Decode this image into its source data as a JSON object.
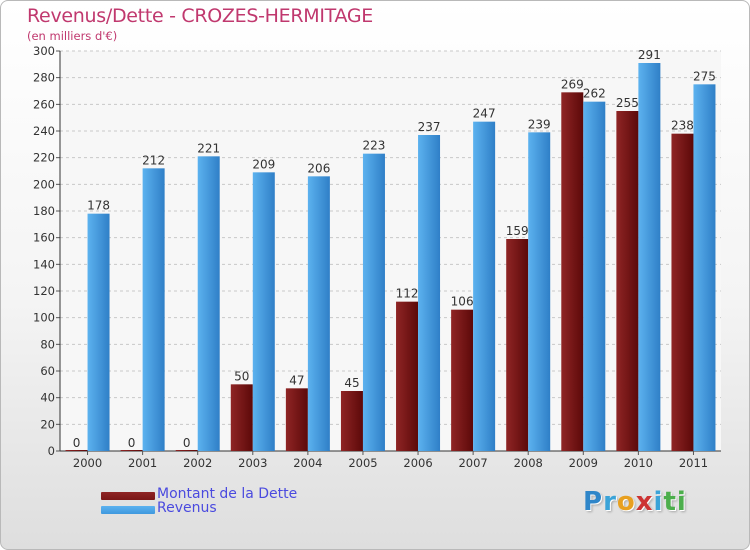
{
  "chart_data": {
    "type": "bar",
    "title": "Revenus/Dette - CROZES-HERMITAGE",
    "subtitle": "(en milliers d'€)",
    "categories": [
      "2000",
      "2001",
      "2002",
      "2003",
      "2004",
      "2005",
      "2006",
      "2007",
      "2008",
      "2009",
      "2010",
      "2011"
    ],
    "series": [
      {
        "name": "Montant de la Dette",
        "color": "#7a1616",
        "values": [
          0,
          0,
          0,
          50,
          47,
          45,
          112,
          106,
          159,
          269,
          255,
          238
        ]
      },
      {
        "name": "Revenus",
        "color": "#3f98de",
        "values": [
          178,
          212,
          221,
          209,
          206,
          223,
          237,
          247,
          239,
          262,
          291,
          275
        ]
      }
    ],
    "ylim": [
      0,
      300
    ],
    "yticks": [
      0,
      20,
      40,
      60,
      80,
      100,
      120,
      140,
      160,
      180,
      200,
      220,
      240,
      260,
      280,
      300
    ],
    "grid": true,
    "legend_position": "bottom-left"
  },
  "brand": {
    "letters": [
      {
        "ch": "P",
        "color": "#2f86c9"
      },
      {
        "ch": "r",
        "color": "#3aa3d8"
      },
      {
        "ch": "o",
        "color": "#e8a020"
      },
      {
        "ch": "x",
        "color": "#cc3333"
      },
      {
        "ch": "i",
        "color": "#3aa3d8"
      },
      {
        "ch": "t",
        "color": "#4cae4c"
      },
      {
        "ch": "i",
        "color": "#4cae4c"
      }
    ]
  }
}
